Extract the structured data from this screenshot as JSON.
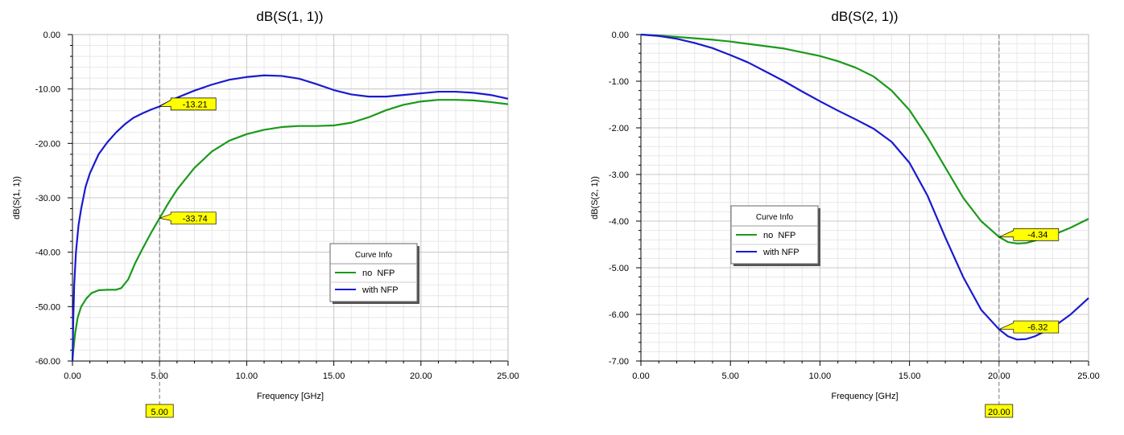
{
  "chart_data": [
    {
      "type": "line",
      "title": "dB(S(1, 1))",
      "xlabel": "Frequency [GHz]",
      "ylabel": "dB(S(1, 1))",
      "xlim": [
        0,
        25
      ],
      "ylim": [
        -60,
        0
      ],
      "x_ticks": [
        "0.00",
        "5.00",
        "10.00",
        "15.00",
        "20.00",
        "25.00"
      ],
      "y_ticks": [
        "0.00",
        "-10.00",
        "-20.00",
        "-30.00",
        "-40.00",
        "-50.00",
        "-60.00"
      ],
      "grid": true,
      "legend": {
        "title": "Curve Info",
        "placement": "center-right"
      },
      "series": [
        {
          "name": "no  NFP",
          "color": "#1a9a1a",
          "x": [
            0,
            0.05,
            0.15,
            0.3,
            0.5,
            0.8,
            1.1,
            1.5,
            2.0,
            2.5,
            2.8,
            3.2,
            3.6,
            4.0,
            4.5,
            5.0,
            5.5,
            6.0,
            7.0,
            8.0,
            9.0,
            10.0,
            11.0,
            12.0,
            13.0,
            14.0,
            15.0,
            16.0,
            17.0,
            18.0,
            19.0,
            20.0,
            21.0,
            22.0,
            23.0,
            24.0,
            25.0
          ],
          "y": [
            -60,
            -58,
            -55,
            -52,
            -50,
            -48.5,
            -47.5,
            -47,
            -46.9,
            -46.9,
            -46.6,
            -45,
            -42,
            -39.5,
            -36.5,
            -33.74,
            -31,
            -28.5,
            -24.5,
            -21.5,
            -19.5,
            -18.3,
            -17.5,
            -17,
            -16.8,
            -16.8,
            -16.7,
            -16.2,
            -15.2,
            -13.9,
            -12.9,
            -12.3,
            -12.0,
            -12.0,
            -12.1,
            -12.4,
            -12.8
          ]
        },
        {
          "name": "with NFP",
          "color": "#1a1ad0",
          "x": [
            0,
            0.05,
            0.1,
            0.2,
            0.35,
            0.5,
            0.75,
            1.0,
            1.5,
            2.0,
            2.5,
            3.0,
            3.5,
            4.0,
            4.5,
            5.0,
            6.0,
            7.0,
            8.0,
            9.0,
            10.0,
            11.0,
            12.0,
            13.0,
            14.0,
            15.0,
            16.0,
            17.0,
            18.0,
            19.0,
            20.0,
            21.0,
            22.0,
            23.0,
            24.0,
            25.0
          ],
          "y": [
            -60,
            -52,
            -46,
            -40,
            -35,
            -32,
            -28,
            -25.5,
            -22,
            -19.8,
            -18,
            -16.5,
            -15.3,
            -14.5,
            -13.8,
            -13.21,
            -11.6,
            -10.3,
            -9.2,
            -8.3,
            -7.8,
            -7.5,
            -7.6,
            -8.1,
            -9.1,
            -10.2,
            -11.0,
            -11.4,
            -11.4,
            -11.1,
            -10.8,
            -10.5,
            -10.5,
            -10.7,
            -11.1,
            -11.8
          ]
        }
      ],
      "marker": {
        "x_label": "5.00",
        "x": 5.0,
        "values": [
          {
            "label": "-13.21",
            "y": -13.21
          },
          {
            "label": "-33.74",
            "y": -33.74
          }
        ]
      }
    },
    {
      "type": "line",
      "title": "dB(S(2, 1))",
      "xlabel": "Frequency [GHz]",
      "ylabel": "dB(S(2, 1))",
      "xlim": [
        0,
        25
      ],
      "ylim": [
        -7,
        0
      ],
      "x_ticks": [
        "0.00",
        "5.00",
        "10.00",
        "15.00",
        "20.00",
        "25.00"
      ],
      "y_ticks": [
        "0.00",
        "-1.00",
        "-2.00",
        "-3.00",
        "-4.00",
        "-5.00",
        "-6.00",
        "-7.00"
      ],
      "grid": true,
      "legend": {
        "title": "Curve Info",
        "placement": "center"
      },
      "series": [
        {
          "name": "no  NFP",
          "color": "#1a9a1a",
          "x": [
            0,
            1,
            2,
            3,
            4,
            5,
            6,
            7,
            8,
            9,
            10,
            11,
            12,
            13,
            14,
            15,
            16,
            17,
            18,
            19,
            20,
            20.5,
            21,
            21.5,
            22,
            23,
            24,
            25
          ],
          "y": [
            0,
            -0.02,
            -0.05,
            -0.08,
            -0.11,
            -0.15,
            -0.2,
            -0.25,
            -0.3,
            -0.38,
            -0.46,
            -0.57,
            -0.71,
            -0.9,
            -1.2,
            -1.62,
            -2.2,
            -2.85,
            -3.5,
            -4.0,
            -4.34,
            -4.45,
            -4.48,
            -4.47,
            -4.42,
            -4.3,
            -4.14,
            -3.95
          ]
        },
        {
          "name": "with NFP",
          "color": "#1a1ad0",
          "x": [
            0,
            1,
            2,
            3,
            4,
            5,
            6,
            7,
            8,
            9,
            10,
            11,
            12,
            13,
            14,
            15,
            16,
            17,
            18,
            19,
            20,
            20.5,
            21,
            21.5,
            22,
            23,
            24,
            25
          ],
          "y": [
            0,
            -0.03,
            -0.09,
            -0.18,
            -0.29,
            -0.44,
            -0.6,
            -0.8,
            -1.0,
            -1.22,
            -1.43,
            -1.63,
            -1.82,
            -2.02,
            -2.3,
            -2.75,
            -3.45,
            -4.35,
            -5.2,
            -5.9,
            -6.32,
            -6.47,
            -6.54,
            -6.53,
            -6.47,
            -6.28,
            -6.0,
            -5.65
          ]
        }
      ],
      "marker": {
        "x_label": "20.00",
        "x": 20.0,
        "values": [
          {
            "label": "-4.34",
            "y": -4.34
          },
          {
            "label": "-6.32",
            "y": -6.32
          }
        ]
      }
    }
  ]
}
